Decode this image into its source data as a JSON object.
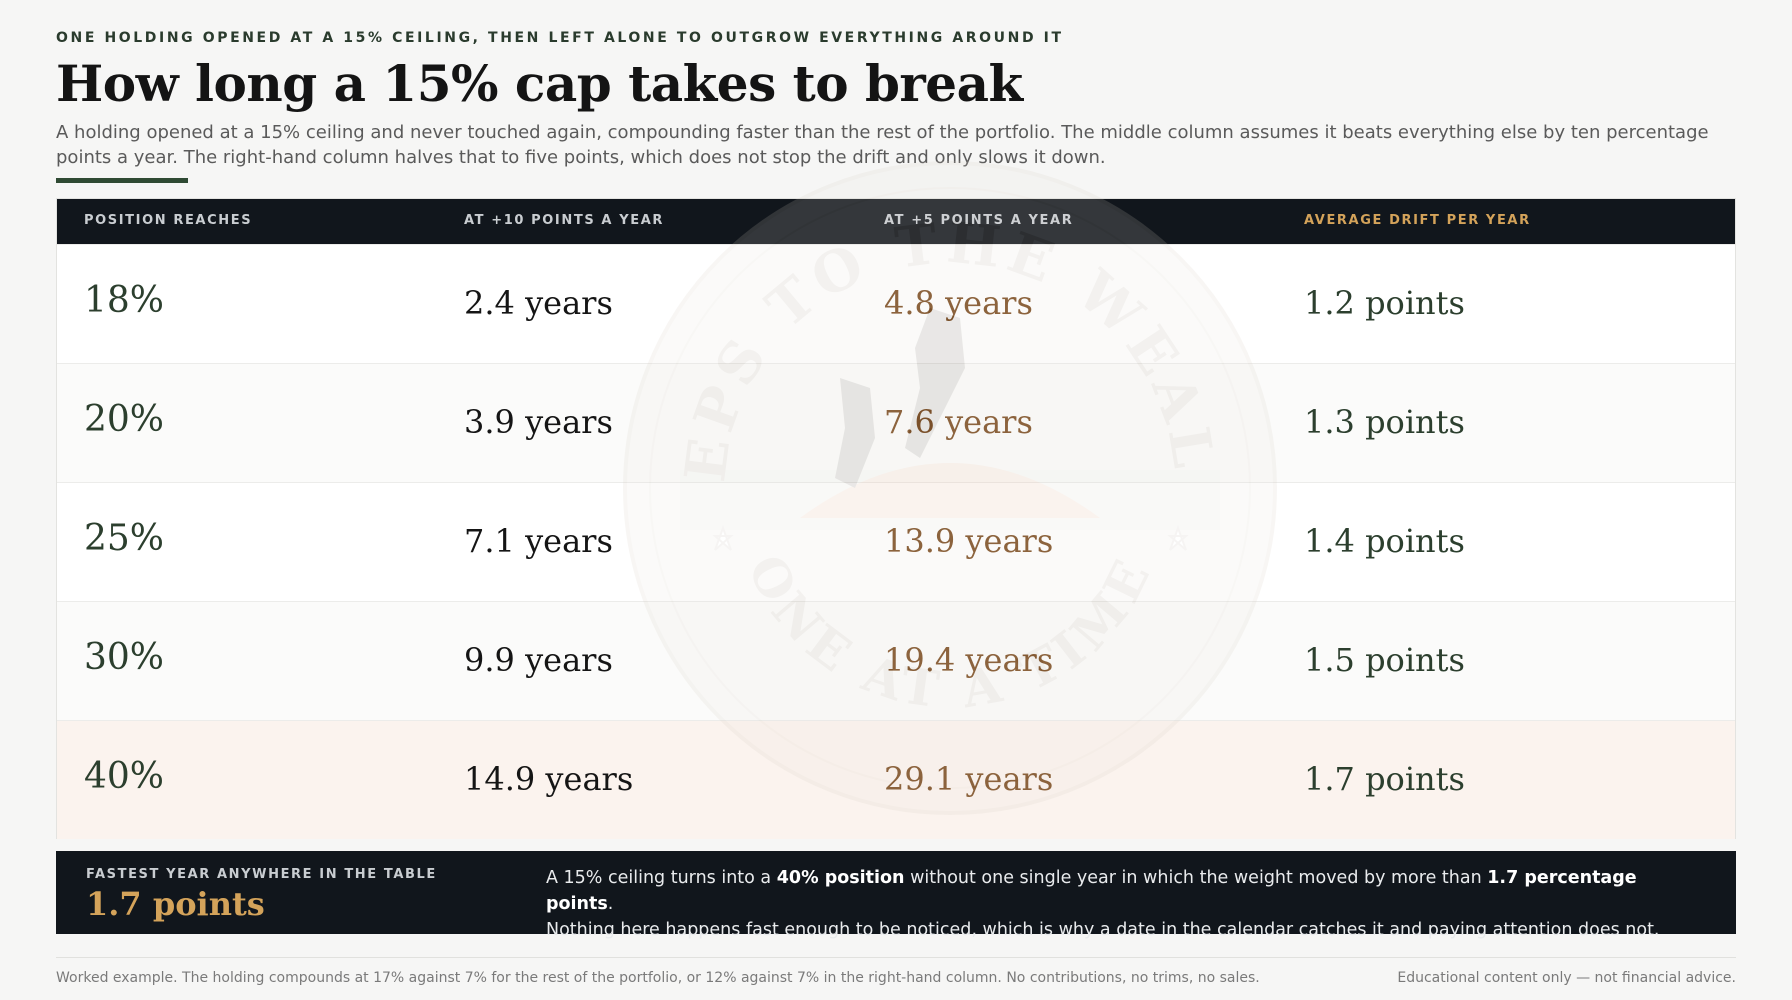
{
  "header": {
    "eyebrow": "ONE HOLDING OPENED AT A 15% CEILING, THEN LEFT ALONE TO OUTGROW EVERYTHING AROUND IT",
    "title": "How long a 15% cap takes to break",
    "lede": "A holding opened at a 15% ceiling and never touched again, compounding faster than the rest of the portfolio. The middle column assumes it beats everything else by ten percentage points a year. The right-hand column halves that to five points, which does not stop the drift and only slows it down."
  },
  "table": {
    "columns": [
      "POSITION REACHES",
      "AT +10 POINTS A YEAR",
      "AT +5 POINTS A YEAR",
      "AVERAGE DRIFT PER YEAR"
    ],
    "rows": [
      {
        "position": "18%",
        "ten": "2.4 years",
        "five": "4.8 years",
        "drift": "1.2 points"
      },
      {
        "position": "20%",
        "ten": "3.9 years",
        "five": "7.6 years",
        "drift": "1.3 points"
      },
      {
        "position": "25%",
        "ten": "7.1 years",
        "five": "13.9 years",
        "drift": "1.4 points"
      },
      {
        "position": "30%",
        "ten": "9.9 years",
        "five": "19.4 years",
        "drift": "1.5 points"
      },
      {
        "position": "40%",
        "ten": "14.9 years",
        "five": "29.1 years",
        "drift": "1.7 points"
      }
    ]
  },
  "watermark": {
    "top_text": "STEPS TO THE WEALTH",
    "bottom_text": "ONE AT A TIME"
  },
  "callout": {
    "label": "FASTEST YEAR ANYWHERE IN THE TABLE",
    "value": "1.7 points",
    "text_1": "A 15% ceiling turns into a ",
    "bold_1": "40% position",
    "text_2": " without one single year in which the weight moved by more than ",
    "bold_2": "1.7 percentage points",
    "text_3": ".",
    "text_4": "Nothing here happens fast enough to be noticed, which is why a date in the calendar catches it and paying attention does not."
  },
  "footer": {
    "left": "Worked example. The holding compounds at 17% against 7% for the rest of the portfolio, or 12% against 7% in the right-hand column. No contributions, no trims, no sales.",
    "right": "Educational content only — not financial advice."
  },
  "colors": {
    "background": "#f6f6f5",
    "dark": "#11161c",
    "green": "#2c3f2e",
    "brown": "#7a4a1e",
    "gold": "#d4a35a",
    "highlight_row": "#fbf3ee"
  }
}
